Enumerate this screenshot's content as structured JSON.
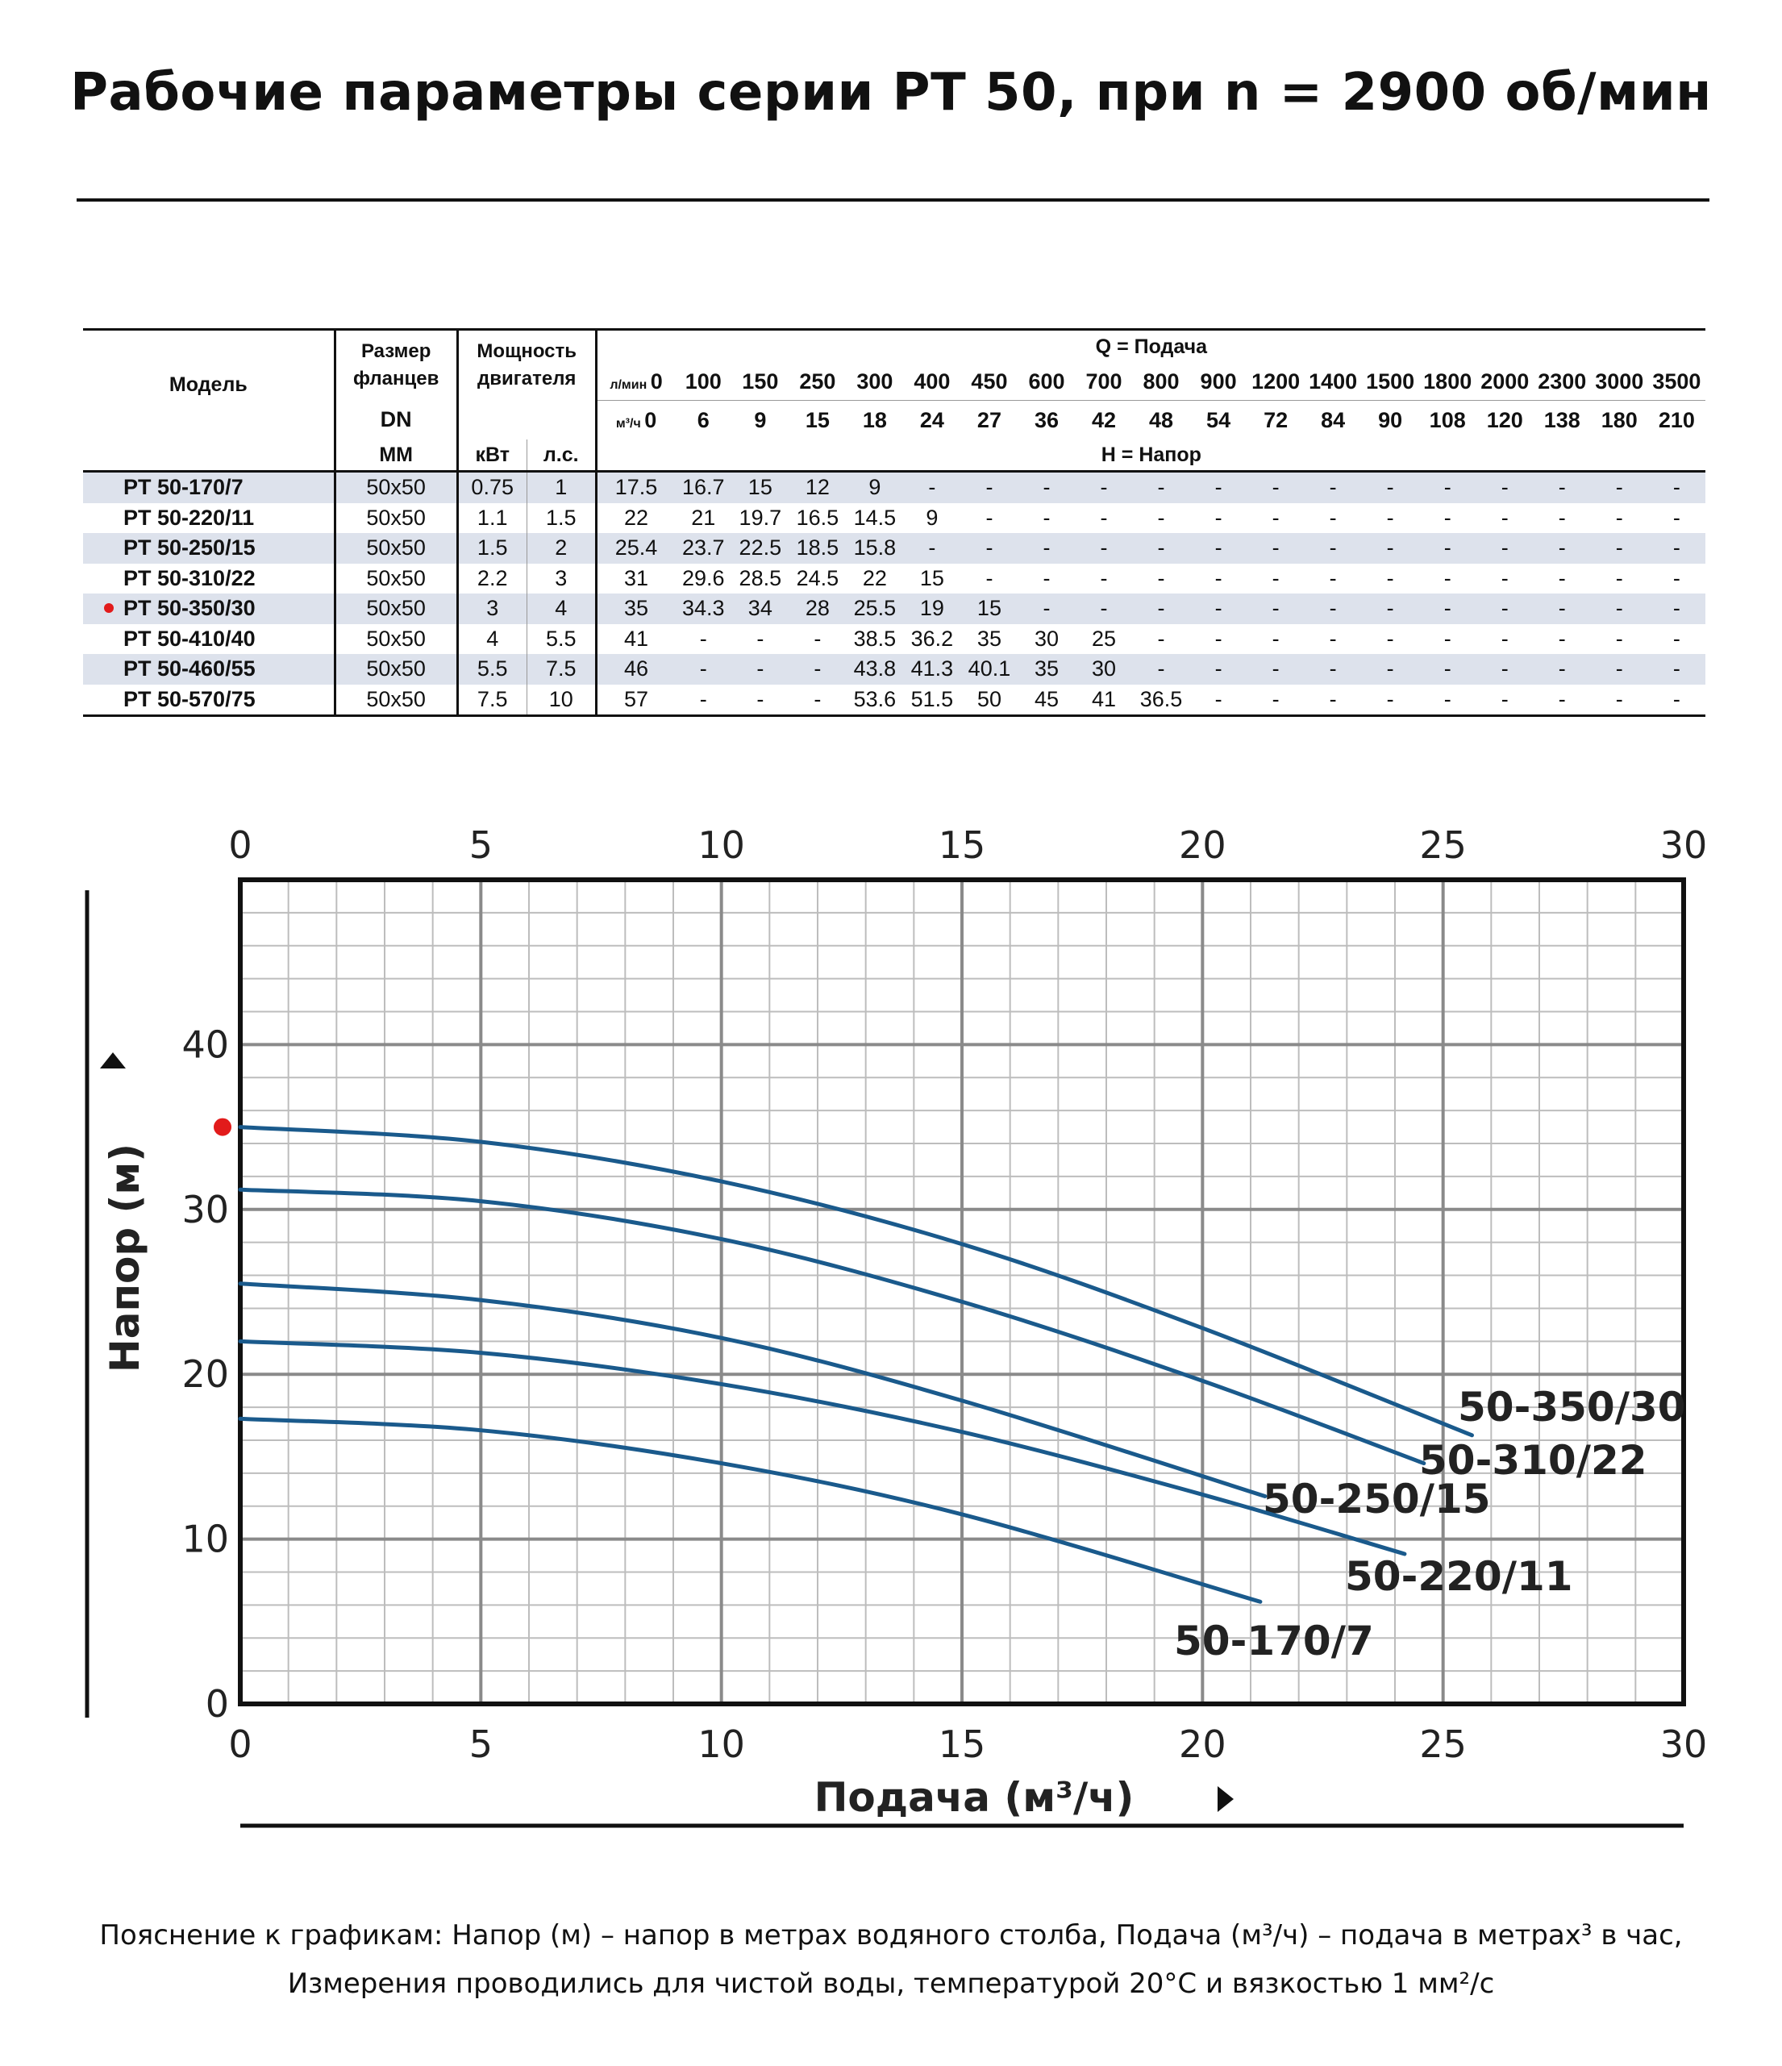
{
  "title": "Рабочие параметры серии РТ 50, при n = 2900 об/мин",
  "table": {
    "header": {
      "model": "Модель",
      "flange": "Размер фланцев",
      "dn": "DN",
      "mm": "ММ",
      "power": "Мощность двигателя",
      "kw": "кВт",
      "hp": "л.с.",
      "q_label": "Q = Подача",
      "lmin_unit": "л/мин",
      "m3h_unit": "м³/ч",
      "h_label": "H = Напор",
      "lmin": [
        "0",
        "100",
        "150",
        "250",
        "300",
        "400",
        "450",
        "600",
        "700",
        "800",
        "900",
        "1200",
        "1400",
        "1500",
        "1800",
        "2000",
        "2300",
        "3000",
        "3500"
      ],
      "m3h": [
        "0",
        "6",
        "9",
        "15",
        "18",
        "24",
        "27",
        "36",
        "42",
        "48",
        "54",
        "72",
        "84",
        "90",
        "108",
        "120",
        "138",
        "180",
        "210"
      ]
    },
    "rows": [
      {
        "model": "PT 50-170/7",
        "dn": "50x50",
        "kw": "0.75",
        "hp": "1",
        "h": [
          "17.5",
          "16.7",
          "15",
          "12",
          "9",
          "-",
          "-",
          "-",
          "-",
          "-",
          "-",
          "-",
          "-",
          "-",
          "-",
          "-",
          "-",
          "-",
          "-"
        ]
      },
      {
        "model": "PT 50-220/11",
        "dn": "50x50",
        "kw": "1.1",
        "hp": "1.5",
        "h": [
          "22",
          "21",
          "19.7",
          "16.5",
          "14.5",
          "9",
          "-",
          "-",
          "-",
          "-",
          "-",
          "-",
          "-",
          "-",
          "-",
          "-",
          "-",
          "-",
          "-"
        ]
      },
      {
        "model": "PT 50-250/15",
        "dn": "50x50",
        "kw": "1.5",
        "hp": "2",
        "h": [
          "25.4",
          "23.7",
          "22.5",
          "18.5",
          "15.8",
          "-",
          "-",
          "-",
          "-",
          "-",
          "-",
          "-",
          "-",
          "-",
          "-",
          "-",
          "-",
          "-",
          "-"
        ]
      },
      {
        "model": "PT 50-310/22",
        "dn": "50x50",
        "kw": "2.2",
        "hp": "3",
        "h": [
          "31",
          "29.6",
          "28.5",
          "24.5",
          "22",
          "15",
          "-",
          "-",
          "-",
          "-",
          "-",
          "-",
          "-",
          "-",
          "-",
          "-",
          "-",
          "-",
          "-"
        ]
      },
      {
        "model": "PT 50-350/30",
        "dn": "50x50",
        "kw": "3",
        "hp": "4",
        "h": [
          "35",
          "34.3",
          "34",
          "28",
          "25.5",
          "19",
          "15",
          "-",
          "-",
          "-",
          "-",
          "-",
          "-",
          "-",
          "-",
          "-",
          "-",
          "-",
          "-"
        ],
        "marked": true
      },
      {
        "model": "PT 50-410/40",
        "dn": "50x50",
        "kw": "4",
        "hp": "5.5",
        "h": [
          "41",
          "-",
          "-",
          "-",
          "38.5",
          "36.2",
          "35",
          "30",
          "25",
          "-",
          "-",
          "-",
          "-",
          "-",
          "-",
          "-",
          "-",
          "-",
          "-"
        ]
      },
      {
        "model": "PT 50-460/55",
        "dn": "50x50",
        "kw": "5.5",
        "hp": "7.5",
        "h": [
          "46",
          "-",
          "-",
          "-",
          "43.8",
          "41.3",
          "40.1",
          "35",
          "30",
          "-",
          "-",
          "-",
          "-",
          "-",
          "-",
          "-",
          "-",
          "-",
          "-"
        ]
      },
      {
        "model": "PT 50-570/75",
        "dn": "50x50",
        "kw": "7.5",
        "hp": "10",
        "h": [
          "57",
          "-",
          "-",
          "-",
          "53.6",
          "51.5",
          "50",
          "45",
          "41",
          "36.5",
          "-",
          "-",
          "-",
          "-",
          "-",
          "-",
          "-",
          "-",
          "-"
        ]
      }
    ]
  },
  "chart_data": {
    "type": "line",
    "xlabel": "Подача (м³/ч)",
    "ylabel": "Напор (м)",
    "xlim": [
      0,
      30
    ],
    "ylim": [
      0,
      50
    ],
    "x_ticks": [
      "0",
      "5",
      "10",
      "15",
      "20",
      "25",
      "30"
    ],
    "y_ticks": [
      "0",
      "10",
      "20",
      "30",
      "40"
    ],
    "grid": true,
    "line_color": "#1a5a8c",
    "marker_color": "#e21b1b",
    "marker_y": 35,
    "series": [
      {
        "name": "50-350/30",
        "x": [
          0,
          5,
          10,
          15,
          20,
          25.6
        ],
        "y": [
          35,
          34.1,
          31.7,
          27.9,
          22.8,
          16.3
        ]
      },
      {
        "name": "50-310/22",
        "x": [
          0,
          5,
          10,
          15,
          20,
          24.6
        ],
        "y": [
          31.2,
          30.5,
          28.2,
          24.4,
          19.6,
          14.6
        ]
      },
      {
        "name": "50-250/15",
        "x": [
          0,
          5,
          10,
          15,
          21.3
        ],
        "y": [
          25.5,
          24.5,
          22.2,
          18.4,
          12.6
        ]
      },
      {
        "name": "50-220/11",
        "x": [
          0,
          5,
          10,
          15,
          20,
          24.2
        ],
        "y": [
          22,
          21.3,
          19.4,
          16.5,
          12.7,
          9.1
        ]
      },
      {
        "name": "50-170/7",
        "x": [
          0,
          5,
          10,
          15,
          21.2
        ],
        "y": [
          17.3,
          16.6,
          14.6,
          11.5,
          6.2
        ]
      }
    ]
  },
  "footnote": {
    "line1": "Пояснение к графикам: Напор (м) – напор в метрах водяного столба, Подача (м³/ч) – подача в метрах³ в час,",
    "line2": "Измерения проводились для чистой воды, температурой 20°С и вязкостью 1 мм²/с"
  }
}
